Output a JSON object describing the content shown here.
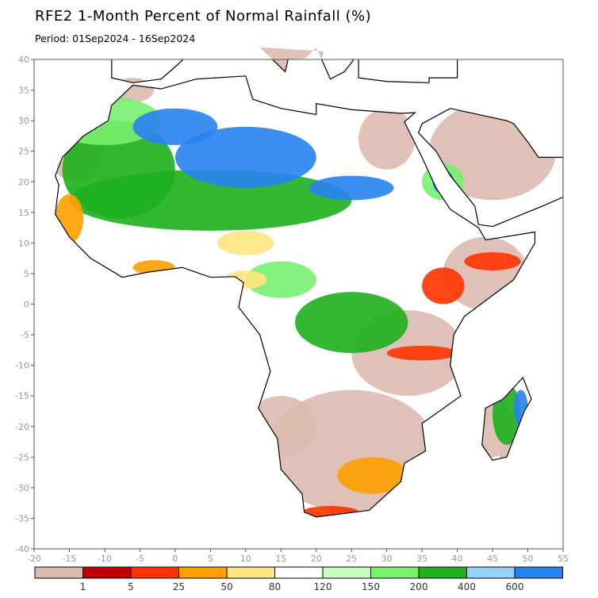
{
  "title": "RFE2 1-Month Percent of Normal Rainfall (%)",
  "period": "Period: 01Sep2024 - 16Sep2024",
  "map": {
    "lon_range": [
      -20,
      55
    ],
    "lat_range": [
      -40,
      40
    ],
    "x_ticks": [
      "-20",
      "-15",
      "-10",
      "-5",
      "0",
      "5",
      "10",
      "15",
      "20",
      "25",
      "30",
      "35",
      "40",
      "45",
      "50",
      "55"
    ],
    "y_ticks": [
      "40",
      "35",
      "30",
      "25",
      "20",
      "15",
      "10",
      "5",
      "0",
      "-5",
      "-10",
      "-15",
      "-20",
      "-25",
      "-30",
      "-35",
      "-40"
    ]
  },
  "legend": {
    "colors": [
      "#dbbab0",
      "#c00000",
      "#ff3300",
      "#ffa000",
      "#ffe680",
      "#ffffff",
      "#c8ffc0",
      "#78f070",
      "#1eb01e",
      "#96d2fa",
      "#2882f0"
    ],
    "labels": [
      "1",
      "5",
      "25",
      "50",
      "80",
      "120",
      "150",
      "200",
      "400",
      "600"
    ]
  }
}
